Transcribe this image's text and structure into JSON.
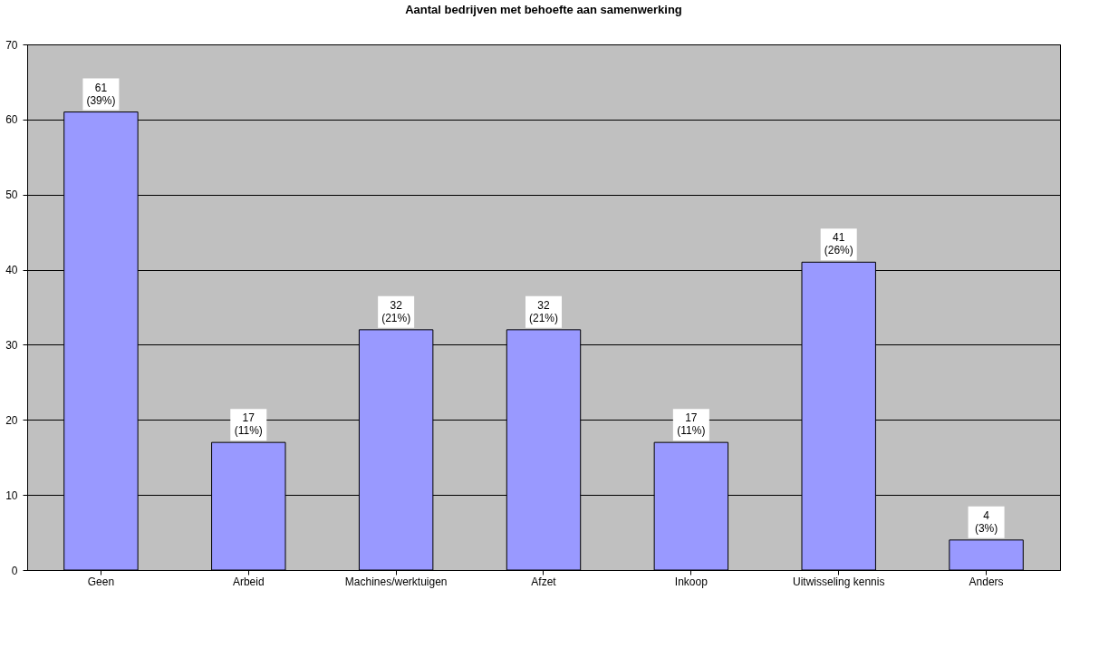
{
  "chart_data": {
    "type": "bar",
    "title": "Aantal bedrijven met behoefte aan samenwerking",
    "categories": [
      "Geen",
      "Arbeid",
      "Machines/werktuigen",
      "Afzet",
      "Inkoop",
      "Uitwisseling kennis",
      "Anders"
    ],
    "values": [
      61,
      17,
      32,
      32,
      17,
      41,
      4
    ],
    "value_labels": [
      "61\n(39%)",
      "17\n(11%)",
      "32\n(21%)",
      "32\n(21%)",
      "17\n(11%)",
      "41\n(26%)",
      "4\n(3%)"
    ],
    "color": "#9999ff",
    "ylim": [
      0,
      70
    ],
    "yticks": [
      0,
      10,
      20,
      30,
      40,
      50,
      60,
      70
    ],
    "grid": "y"
  }
}
